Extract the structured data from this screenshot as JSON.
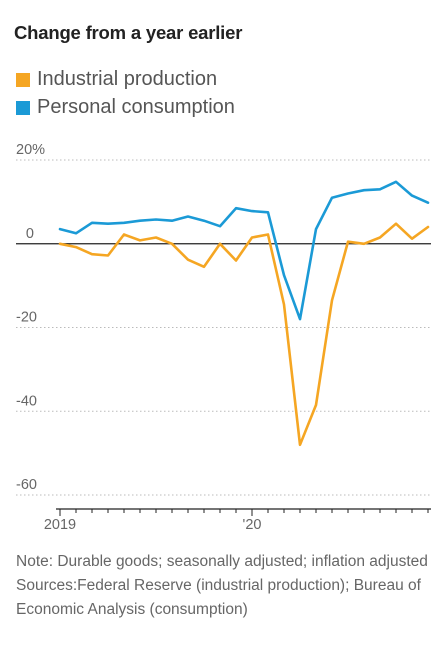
{
  "chart_data": {
    "type": "line",
    "title": "Change from a year earlier",
    "y_unit": "%",
    "ylim": [
      -60,
      20
    ],
    "y_ticks": [
      20,
      0,
      -20,
      -40,
      -60
    ],
    "y_tick_labels": [
      "20%",
      "0",
      "-20",
      "-40",
      "-60"
    ],
    "x_start": "2019-01",
    "x_ticks": [
      {
        "month_index": 0,
        "label": "2019"
      },
      {
        "month_index": 12,
        "label": "'20"
      }
    ],
    "grid": true,
    "legend_position": "top-left",
    "series": [
      {
        "name": "Industrial production",
        "color": "#f5a623",
        "values": [
          0,
          -0.8,
          -2.5,
          -2.8,
          2.2,
          0.8,
          1.5,
          0,
          -3.8,
          -5.5,
          0,
          -4,
          1.5,
          2.2,
          -14.5,
          -48,
          -38.5,
          -13.5,
          0.5,
          0,
          1.5,
          4.8,
          1.2,
          4
        ]
      },
      {
        "name": "Personal consumption",
        "color": "#1b9ad6",
        "values": [
          3.5,
          2.5,
          5,
          4.8,
          5,
          5.5,
          5.8,
          5.5,
          6.5,
          5.5,
          4.2,
          8.5,
          7.8,
          7.5,
          -7.5,
          -18,
          3.5,
          11,
          12,
          12.8,
          13,
          14.8,
          11.5,
          9.8
        ]
      }
    ]
  },
  "footnote": {
    "note": "Note: Durable goods; seasonally adjusted; inflation adjusted",
    "sources": "Sources:Federal Reserve (industrial production); Bureau of Economic Analysis (consumption)"
  }
}
